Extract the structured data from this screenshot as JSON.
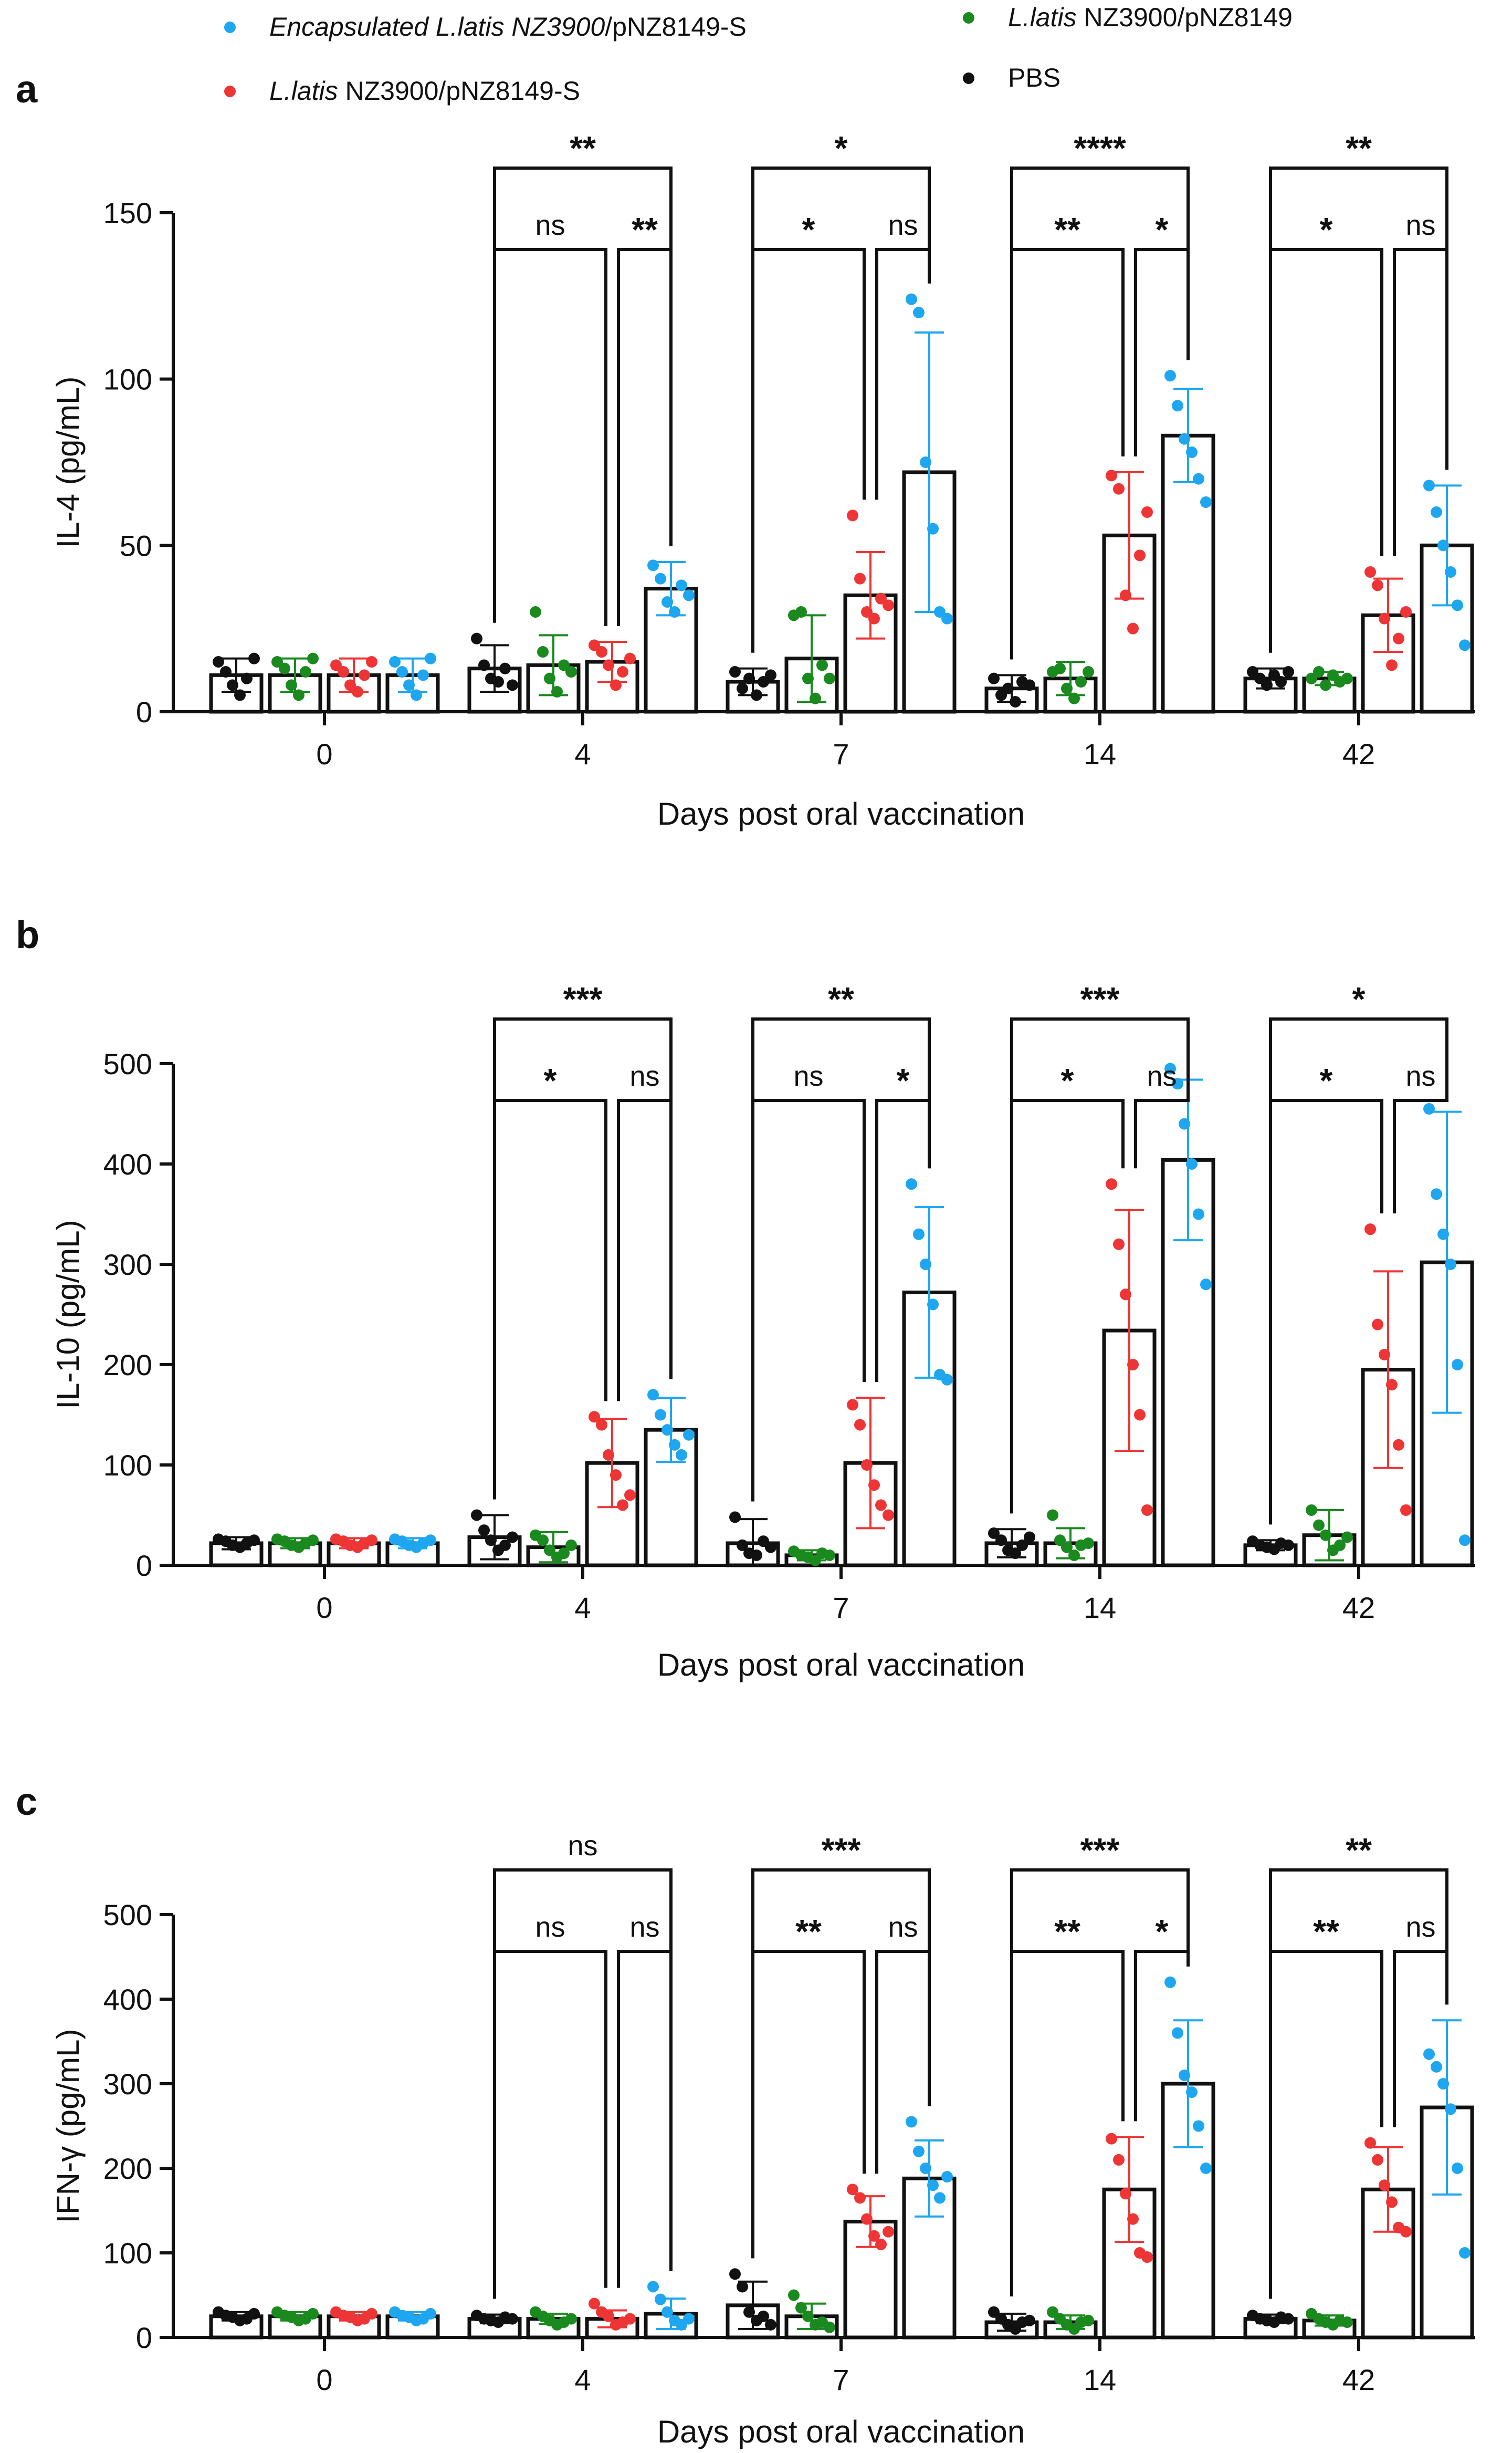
{
  "legend": [
    {
      "group": "enc",
      "italic": "Encapsulated L.latis NZ3900",
      "plain": "/pNZ8149-S",
      "color": "#1ea7f0"
    },
    {
      "group": "lat",
      "italic": "L.latis",
      "plain": " NZ3900/pNZ8149",
      "color": "#1a8a1f"
    },
    {
      "group": "s",
      "italic": "L.latis",
      "plain": " NZ3900/pNZ8149-S",
      "color": "#ee3535"
    },
    {
      "group": "pbs",
      "italic": "",
      "plain": "PBS",
      "color": "#111111"
    }
  ],
  "chart_data": [
    {
      "panel": "a",
      "type": "bar",
      "title": "",
      "xlabel": "Days post oral vaccination",
      "ylabel": "IL-4 (pg/mL)",
      "ylim": [
        0,
        150
      ],
      "yticks": [
        0,
        50,
        100,
        150
      ],
      "categories": [
        "0",
        "4",
        "7",
        "14",
        "42"
      ],
      "series": [
        {
          "name": "PBS",
          "color": "#111111",
          "values": [
            11,
            13,
            9,
            7,
            10
          ],
          "sd": [
            5,
            7,
            4,
            4,
            3
          ],
          "points": [
            [
              15,
              12,
              8,
              5,
              10,
              16
            ],
            [
              22,
              14,
              10,
              9,
              13,
              8
            ],
            [
              12,
              7,
              10,
              5,
              9,
              11
            ],
            [
              10,
              5,
              7,
              3,
              9,
              8
            ],
            [
              12,
              10,
              8,
              11,
              9,
              12
            ]
          ]
        },
        {
          "name": "L.latis NZ3900/pNZ8149",
          "color": "#1a8a1f",
          "values": [
            11,
            14,
            16,
            10,
            10
          ],
          "sd": [
            5,
            9,
            13,
            5,
            2
          ],
          "points": [
            [
              15,
              13,
              8,
              5,
              12,
              16
            ],
            [
              30,
              18,
              10,
              6,
              14,
              12
            ],
            [
              29,
              30,
              10,
              4,
              14,
              10
            ],
            [
              12,
              13,
              7,
              4,
              9,
              12
            ],
            [
              10,
              12,
              8,
              11,
              9,
              10
            ]
          ]
        },
        {
          "name": "L.latis NZ3900/pNZ8149-S",
          "color": "#ee3535",
          "values": [
            11,
            15,
            35,
            53,
            29
          ],
          "sd": [
            5,
            6,
            13,
            19,
            11
          ],
          "points": [
            [
              14,
              12,
              8,
              6,
              11,
              15
            ],
            [
              20,
              18,
              14,
              8,
              12,
              16
            ],
            [
              59,
              40,
              30,
              28,
              34,
              32
            ],
            [
              71,
              67,
              35,
              25,
              47,
              60
            ],
            [
              42,
              38,
              28,
              14,
              22,
              30
            ]
          ]
        },
        {
          "name": "Encapsulated L.latis NZ3900/pNZ8149-S",
          "color": "#1ea7f0",
          "values": [
            11,
            37,
            72,
            83,
            50
          ],
          "sd": [
            5,
            8,
            42,
            14,
            18
          ],
          "points": [
            [
              15,
              12,
              8,
              5,
              11,
              16
            ],
            [
              44,
              40,
              33,
              30,
              38,
              35
            ],
            [
              124,
              120,
              75,
              55,
              30,
              28
            ],
            [
              101,
              92,
              82,
              78,
              70,
              63
            ],
            [
              68,
              60,
              50,
              42,
              32,
              20
            ]
          ]
        }
      ],
      "significance": [
        {
          "day": "4",
          "pairs": [
            {
              "from": "PBS",
              "to": "Encapsulated",
              "label": "**"
            },
            {
              "from": "PBS",
              "to": "S",
              "label": "ns"
            },
            {
              "from": "S",
              "to": "Encapsulated",
              "label": "**"
            }
          ]
        },
        {
          "day": "7",
          "pairs": [
            {
              "from": "PBS",
              "to": "Encapsulated",
              "label": "*"
            },
            {
              "from": "PBS",
              "to": "S",
              "label": "*"
            },
            {
              "from": "S",
              "to": "Encapsulated",
              "label": "ns"
            }
          ]
        },
        {
          "day": "14",
          "pairs": [
            {
              "from": "PBS",
              "to": "Encapsulated",
              "label": "****"
            },
            {
              "from": "PBS",
              "to": "S",
              "label": "**"
            },
            {
              "from": "S",
              "to": "Encapsulated",
              "label": "*"
            }
          ]
        },
        {
          "day": "42",
          "pairs": [
            {
              "from": "PBS",
              "to": "Encapsulated",
              "label": "**"
            },
            {
              "from": "PBS",
              "to": "S",
              "label": "*"
            },
            {
              "from": "S",
              "to": "Encapsulated",
              "label": "ns"
            }
          ]
        }
      ]
    },
    {
      "panel": "b",
      "type": "bar",
      "title": "",
      "xlabel": "Days post oral vaccination",
      "ylabel": "IL-10 (pg/mL)",
      "ylim": [
        0,
        500
      ],
      "yticks": [
        0,
        100,
        200,
        300,
        400,
        500
      ],
      "categories": [
        "0",
        "4",
        "7",
        "14",
        "42"
      ],
      "series": [
        {
          "name": "PBS",
          "color": "#111111",
          "values": [
            22,
            28,
            22,
            22,
            20
          ],
          "sd": [
            6,
            22,
            24,
            14,
            5
          ],
          "points": [
            [
              26,
              24,
              20,
              18,
              22,
              25
            ],
            [
              50,
              35,
              25,
              15,
              20,
              28
            ],
            [
              48,
              20,
              12,
              10,
              24,
              18
            ],
            [
              32,
              25,
              15,
              12,
              20,
              28
            ],
            [
              24,
              20,
              18,
              16,
              22,
              20
            ]
          ]
        },
        {
          "name": "L.latis NZ3900/pNZ8149",
          "color": "#1a8a1f",
          "values": [
            22,
            18,
            10,
            22,
            30
          ],
          "sd": [
            5,
            15,
            5,
            15,
            25
          ],
          "points": [
            [
              26,
              24,
              20,
              18,
              22,
              25
            ],
            [
              30,
              25,
              15,
              8,
              12,
              20
            ],
            [
              14,
              10,
              8,
              5,
              12,
              10
            ],
            [
              50,
              25,
              18,
              10,
              20,
              22
            ],
            [
              55,
              40,
              30,
              15,
              20,
              28
            ]
          ]
        },
        {
          "name": "L.latis NZ3900/pNZ8149-S",
          "color": "#ee3535",
          "values": [
            22,
            102,
            102,
            234,
            195
          ],
          "sd": [
            5,
            44,
            65,
            120,
            98
          ],
          "points": [
            [
              26,
              24,
              20,
              18,
              22,
              25
            ],
            [
              148,
              140,
              110,
              90,
              60,
              70
            ],
            [
              160,
              140,
              100,
              80,
              60,
              50
            ],
            [
              380,
              320,
              270,
              200,
              150,
              55
            ],
            [
              335,
              240,
              210,
              180,
              120,
              55
            ]
          ]
        },
        {
          "name": "Encapsulated L.latis NZ3900/pNZ8149-S",
          "color": "#1ea7f0",
          "values": [
            22,
            135,
            272,
            404,
            302
          ],
          "sd": [
            5,
            32,
            85,
            80,
            150
          ],
          "points": [
            [
              26,
              24,
              20,
              18,
              22,
              25
            ],
            [
              170,
              150,
              135,
              120,
              110,
              130
            ],
            [
              380,
              330,
              300,
              260,
              190,
              185
            ],
            [
              495,
              480,
              440,
              400,
              350,
              280
            ],
            [
              455,
              370,
              330,
              300,
              200,
              25
            ]
          ]
        }
      ],
      "significance": [
        {
          "day": "4",
          "pairs": [
            {
              "from": "PBS",
              "to": "Encapsulated",
              "label": "***"
            },
            {
              "from": "PBS",
              "to": "S",
              "label": "*"
            },
            {
              "from": "S",
              "to": "Encapsulated",
              "label": "ns"
            }
          ]
        },
        {
          "day": "7",
          "pairs": [
            {
              "from": "PBS",
              "to": "Encapsulated",
              "label": "**"
            },
            {
              "from": "PBS",
              "to": "S",
              "label": "ns"
            },
            {
              "from": "S",
              "to": "Encapsulated",
              "label": "*"
            }
          ]
        },
        {
          "day": "14",
          "pairs": [
            {
              "from": "PBS",
              "to": "Encapsulated",
              "label": "***"
            },
            {
              "from": "PBS",
              "to": "S",
              "label": "*"
            },
            {
              "from": "S",
              "to": "Encapsulated",
              "label": "ns"
            }
          ]
        },
        {
          "day": "42",
          "pairs": [
            {
              "from": "PBS",
              "to": "Encapsulated",
              "label": "*"
            },
            {
              "from": "PBS",
              "to": "S",
              "label": "*"
            },
            {
              "from": "S",
              "to": "Encapsulated",
              "label": "ns"
            }
          ]
        }
      ]
    },
    {
      "panel": "c",
      "type": "bar",
      "title": "",
      "xlabel": "Days post oral vaccination",
      "ylabel": "IFN-γ (pg/mL)",
      "ylim": [
        0,
        500
      ],
      "yticks": [
        0,
        100,
        200,
        300,
        400,
        500
      ],
      "categories": [
        "0",
        "4",
        "7",
        "14",
        "42"
      ],
      "series": [
        {
          "name": "PBS",
          "color": "#111111",
          "values": [
            25,
            22,
            38,
            18,
            22
          ],
          "sd": [
            5,
            5,
            28,
            10,
            5
          ],
          "points": [
            [
              30,
              26,
              24,
              20,
              22,
              28
            ],
            [
              26,
              22,
              20,
              18,
              24,
              22
            ],
            [
              75,
              60,
              30,
              20,
              25,
              15
            ],
            [
              30,
              22,
              15,
              10,
              18,
              20
            ],
            [
              26,
              22,
              20,
              18,
              24,
              22
            ]
          ]
        },
        {
          "name": "L.latis NZ3900/pNZ8149",
          "color": "#1a8a1f",
          "values": [
            25,
            22,
            25,
            18,
            20
          ],
          "sd": [
            5,
            6,
            15,
            8,
            6
          ],
          "points": [
            [
              30,
              26,
              24,
              20,
              22,
              28
            ],
            [
              30,
              25,
              20,
              15,
              18,
              22
            ],
            [
              50,
              35,
              25,
              15,
              18,
              12
            ],
            [
              30,
              22,
              15,
              10,
              18,
              20
            ],
            [
              28,
              22,
              18,
              15,
              20,
              18
            ]
          ]
        },
        {
          "name": "L.latis NZ3900/pNZ8149-S",
          "color": "#ee3535",
          "values": [
            25,
            22,
            137,
            175,
            175
          ],
          "sd": [
            5,
            10,
            30,
            62,
            50
          ],
          "points": [
            [
              30,
              26,
              24,
              20,
              22,
              28
            ],
            [
              40,
              30,
              25,
              15,
              18,
              22
            ],
            [
              175,
              165,
              140,
              120,
              110,
              125
            ],
            [
              235,
              210,
              170,
              140,
              100,
              95
            ],
            [
              230,
              210,
              180,
              160,
              130,
              125
            ]
          ]
        },
        {
          "name": "Encapsulated L.latis NZ3900/pNZ8149-S",
          "color": "#1ea7f0",
          "values": [
            25,
            28,
            188,
            300,
            272
          ],
          "sd": [
            5,
            18,
            45,
            75,
            103
          ],
          "points": [
            [
              30,
              26,
              24,
              20,
              22,
              28
            ],
            [
              60,
              45,
              30,
              20,
              15,
              22
            ],
            [
              255,
              220,
              200,
              180,
              165,
              190
            ],
            [
              420,
              360,
              310,
              290,
              250,
              200
            ],
            [
              335,
              320,
              300,
              270,
              200,
              100
            ]
          ]
        }
      ],
      "significance": [
        {
          "day": "4",
          "pairs": [
            {
              "from": "PBS",
              "to": "Encapsulated",
              "label": "ns"
            },
            {
              "from": "PBS",
              "to": "S",
              "label": "ns"
            },
            {
              "from": "S",
              "to": "Encapsulated",
              "label": "ns"
            }
          ]
        },
        {
          "day": "7",
          "pairs": [
            {
              "from": "PBS",
              "to": "Encapsulated",
              "label": "***"
            },
            {
              "from": "PBS",
              "to": "S",
              "label": "**"
            },
            {
              "from": "S",
              "to": "Encapsulated",
              "label": "ns"
            }
          ]
        },
        {
          "day": "14",
          "pairs": [
            {
              "from": "PBS",
              "to": "Encapsulated",
              "label": "***"
            },
            {
              "from": "PBS",
              "to": "S",
              "label": "**"
            },
            {
              "from": "S",
              "to": "Encapsulated",
              "label": "*"
            }
          ]
        },
        {
          "day": "42",
          "pairs": [
            {
              "from": "PBS",
              "to": "Encapsulated",
              "label": "**"
            },
            {
              "from": "PBS",
              "to": "S",
              "label": "**"
            },
            {
              "from": "S",
              "to": "Encapsulated",
              "label": "ns"
            }
          ]
        }
      ]
    }
  ]
}
